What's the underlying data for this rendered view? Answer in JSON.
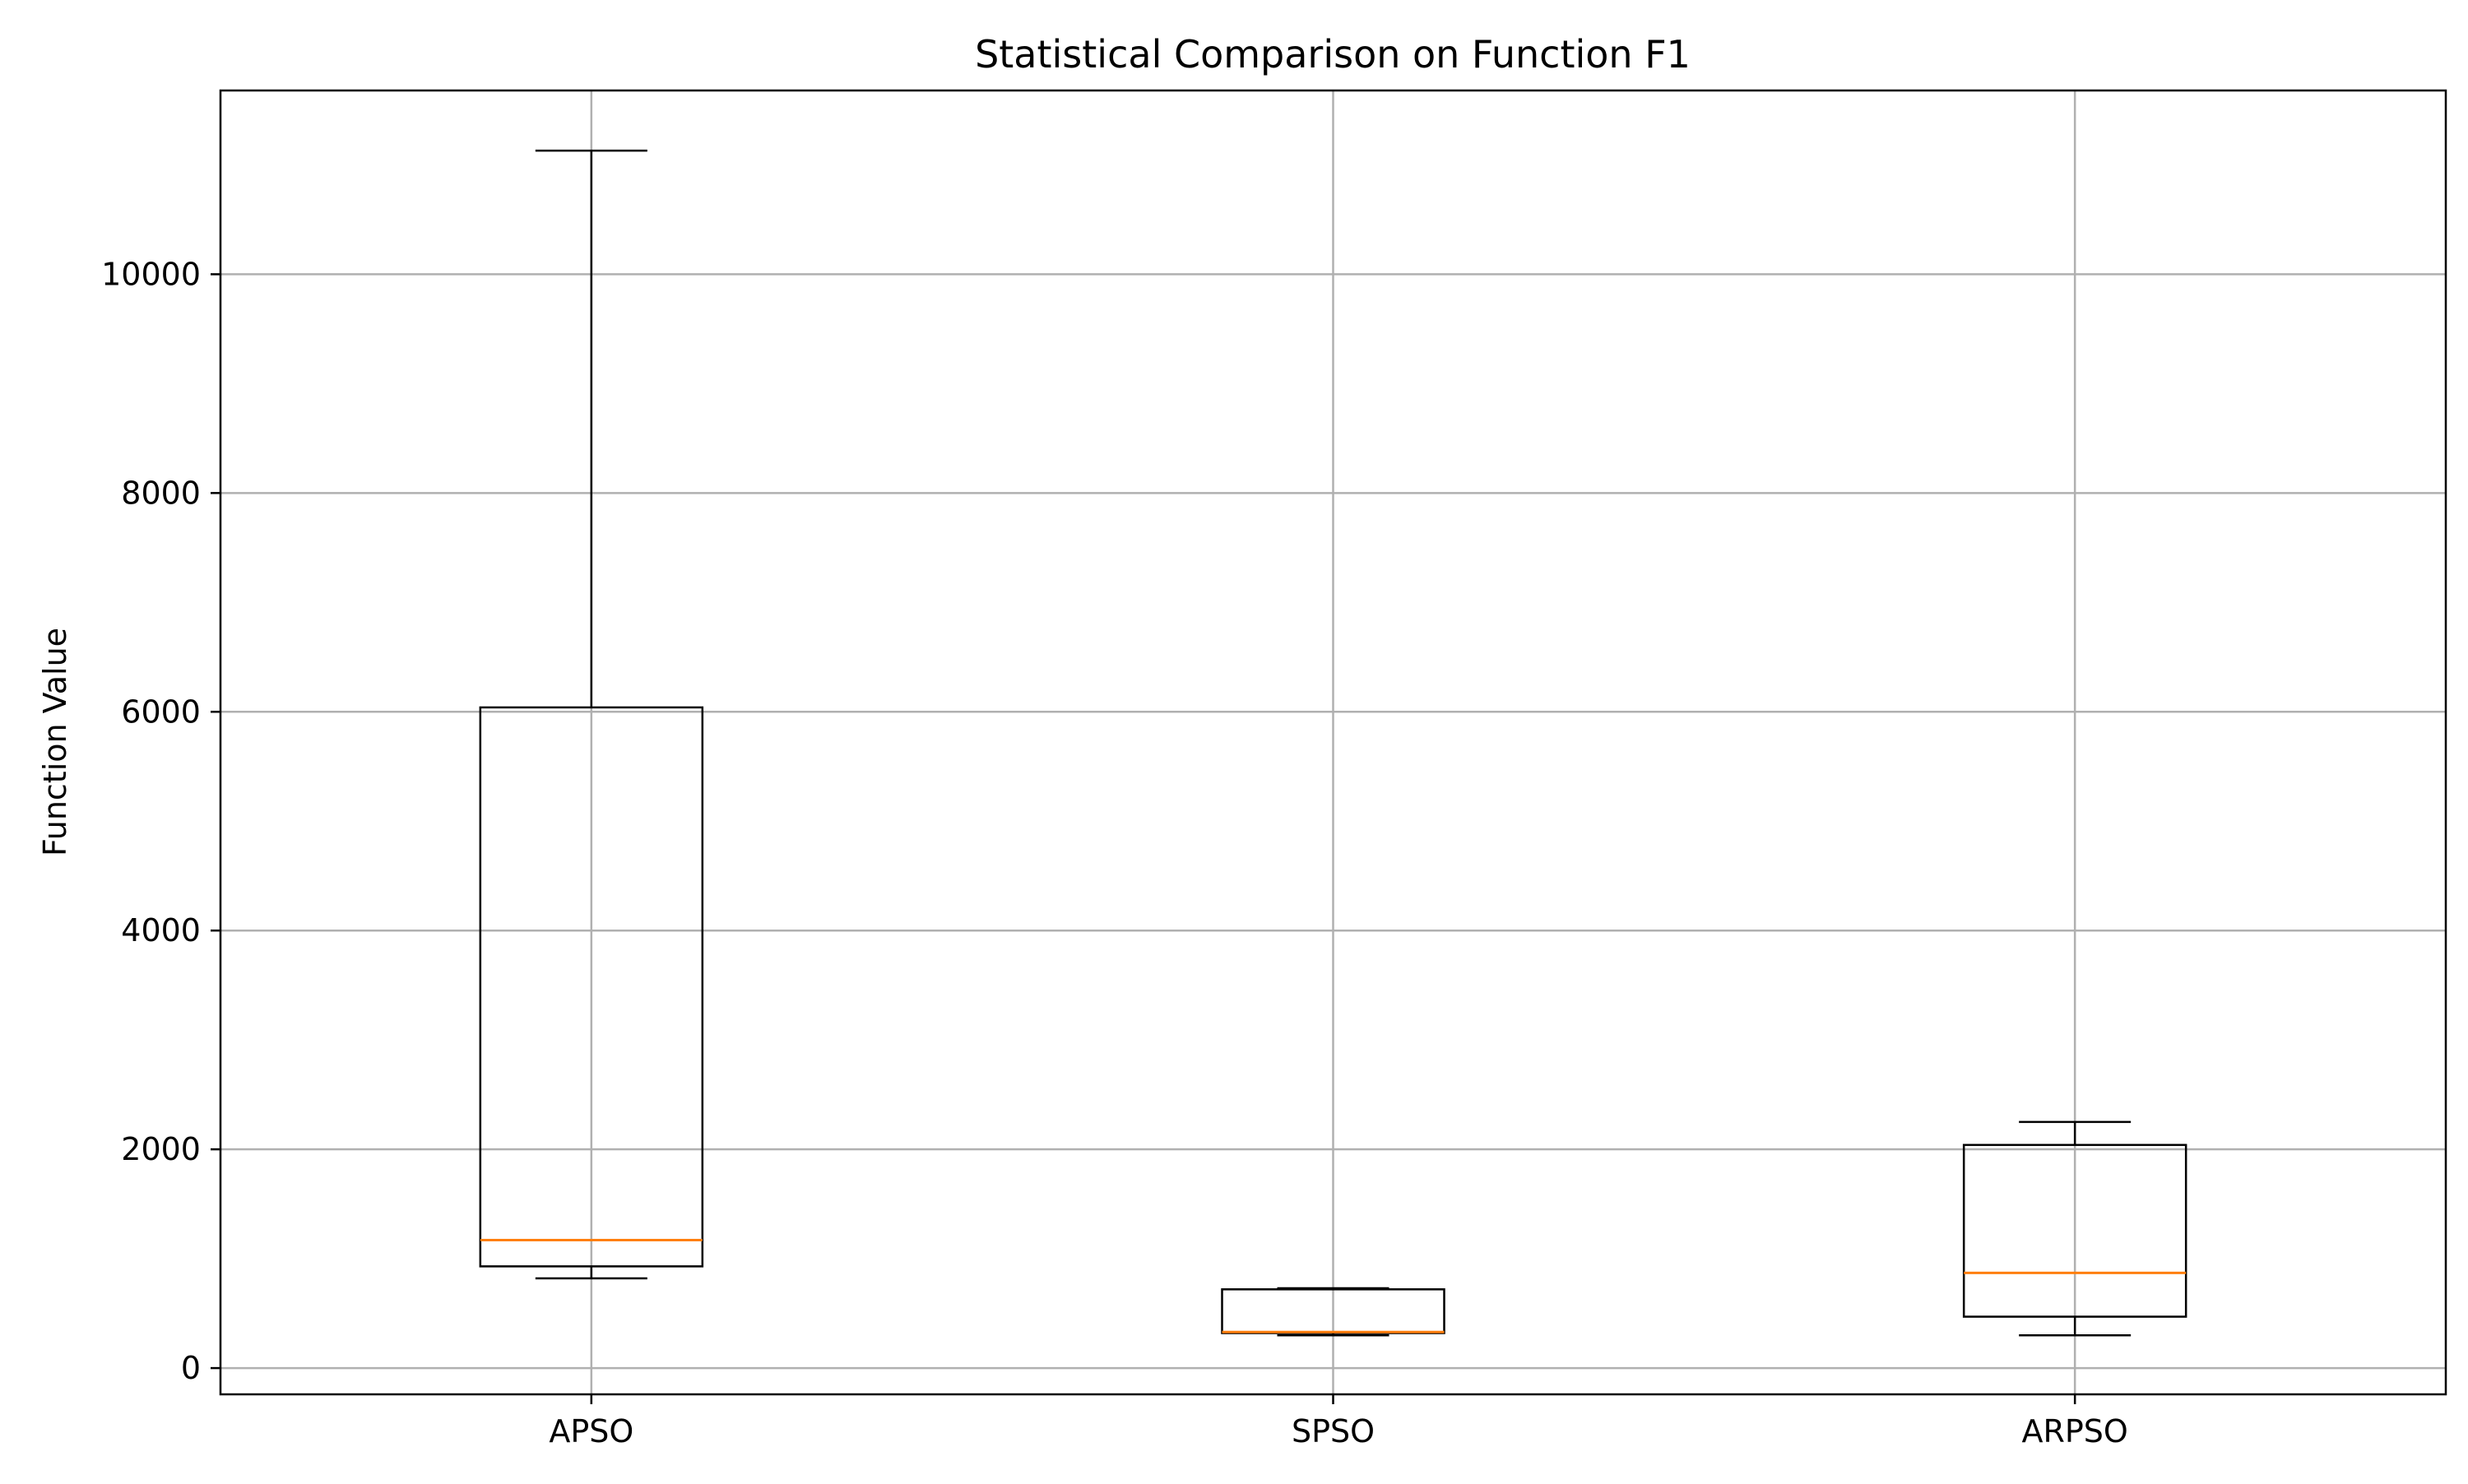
{
  "chart_data": {
    "type": "box",
    "title": "Statistical Comparison on Function F1",
    "xlabel": "",
    "ylabel": "Function Value",
    "categories": [
      "APSO",
      "SPSO",
      "ARPSO"
    ],
    "boxes": [
      {
        "label": "APSO",
        "whisker_low": 820,
        "q1": 930,
        "median": 1170,
        "q3": 6040,
        "whisker_high": 11130
      },
      {
        "label": "SPSO",
        "whisker_low": 300,
        "q1": 320,
        "median": 330,
        "q3": 720,
        "whisker_high": 730
      },
      {
        "label": "ARPSO",
        "whisker_low": 300,
        "q1": 470,
        "median": 870,
        "q3": 2040,
        "whisker_high": 2250
      }
    ],
    "y_ticks": [
      0,
      2000,
      4000,
      6000,
      8000,
      10000
    ],
    "y_tick_labels": [
      "0",
      "2000",
      "4000",
      "6000",
      "8000",
      "10000"
    ],
    "ylim": [
      -240,
      11680
    ],
    "grid": true,
    "colors": {
      "box": "#000000",
      "median": "#ff7f0e",
      "grid": "#b0b0b0"
    }
  }
}
